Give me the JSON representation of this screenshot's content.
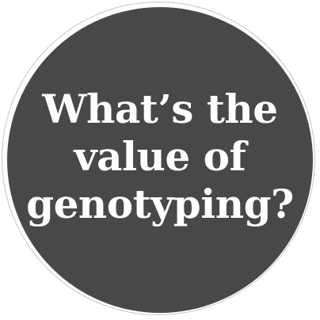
{
  "badge": {
    "lines": [
      "What’s the",
      "value of",
      "genotyping?"
    ],
    "colors": {
      "fill": "#4a4847",
      "text": "#ffffff",
      "dotted_ring": "#8a8a8a"
    }
  }
}
